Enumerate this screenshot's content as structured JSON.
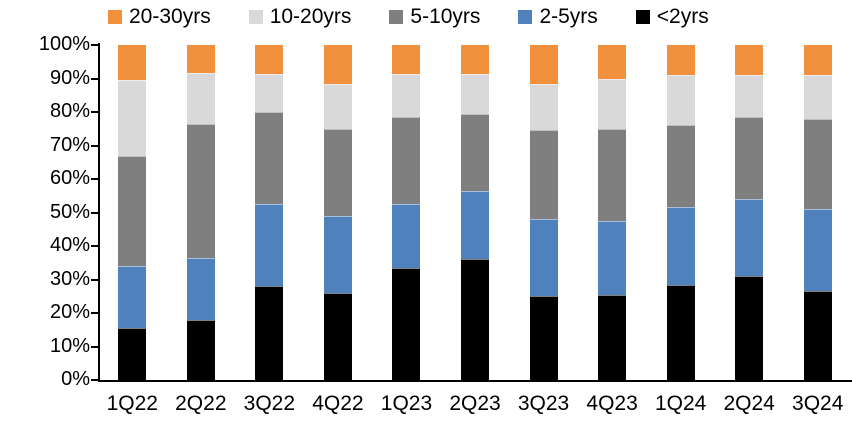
{
  "chart_data": {
    "type": "bar",
    "variant": "stacked-100-percent",
    "title": "",
    "xlabel": "",
    "ylabel": "",
    "categories": [
      "1Q22",
      "2Q22",
      "3Q22",
      "4Q22",
      "1Q23",
      "2Q23",
      "3Q23",
      "4Q23",
      "1Q24",
      "2Q24",
      "3Q24"
    ],
    "series": [
      {
        "name": "<2yrs",
        "color": "#000000",
        "values": [
          15.5,
          18.0,
          28.0,
          26.0,
          33.5,
          36.0,
          25.0,
          25.5,
          28.5,
          31.0,
          26.5
        ]
      },
      {
        "name": "2-5yrs",
        "color": "#4F81BD",
        "values": [
          18.5,
          18.5,
          24.5,
          23.0,
          19.0,
          20.5,
          23.0,
          22.0,
          23.0,
          23.0,
          24.5
        ]
      },
      {
        "name": "5-10yrs",
        "color": "#7F7F7F",
        "values": [
          33.0,
          40.0,
          27.5,
          26.0,
          26.0,
          23.0,
          26.5,
          27.5,
          24.5,
          24.5,
          27.0
        ]
      },
      {
        "name": "10-20yrs",
        "color": "#D9D9D9",
        "values": [
          22.5,
          15.0,
          11.5,
          13.5,
          13.0,
          12.0,
          14.0,
          15.0,
          15.0,
          12.5,
          13.0
        ]
      },
      {
        "name": "20-30yrs",
        "color": "#F1913D",
        "values": [
          10.5,
          8.5,
          8.5,
          11.5,
          8.5,
          8.5,
          11.5,
          10.0,
          9.0,
          9.0,
          9.0
        ]
      }
    ],
    "legend": {
      "position": "top",
      "order": [
        "20-30yrs",
        "10-20yrs",
        "5-10yrs",
        "2-5yrs",
        "<2yrs"
      ]
    },
    "y_axis": {
      "min": 0,
      "max": 100,
      "tick_step": 10,
      "tick_labels": [
        "0%",
        "10%",
        "20%",
        "30%",
        "40%",
        "50%",
        "60%",
        "70%",
        "80%",
        "90%",
        "100%"
      ],
      "grid": false
    },
    "colors": {
      "axis": "#000000",
      "text": "#000000",
      "background": "#FFFFFF"
    }
  }
}
